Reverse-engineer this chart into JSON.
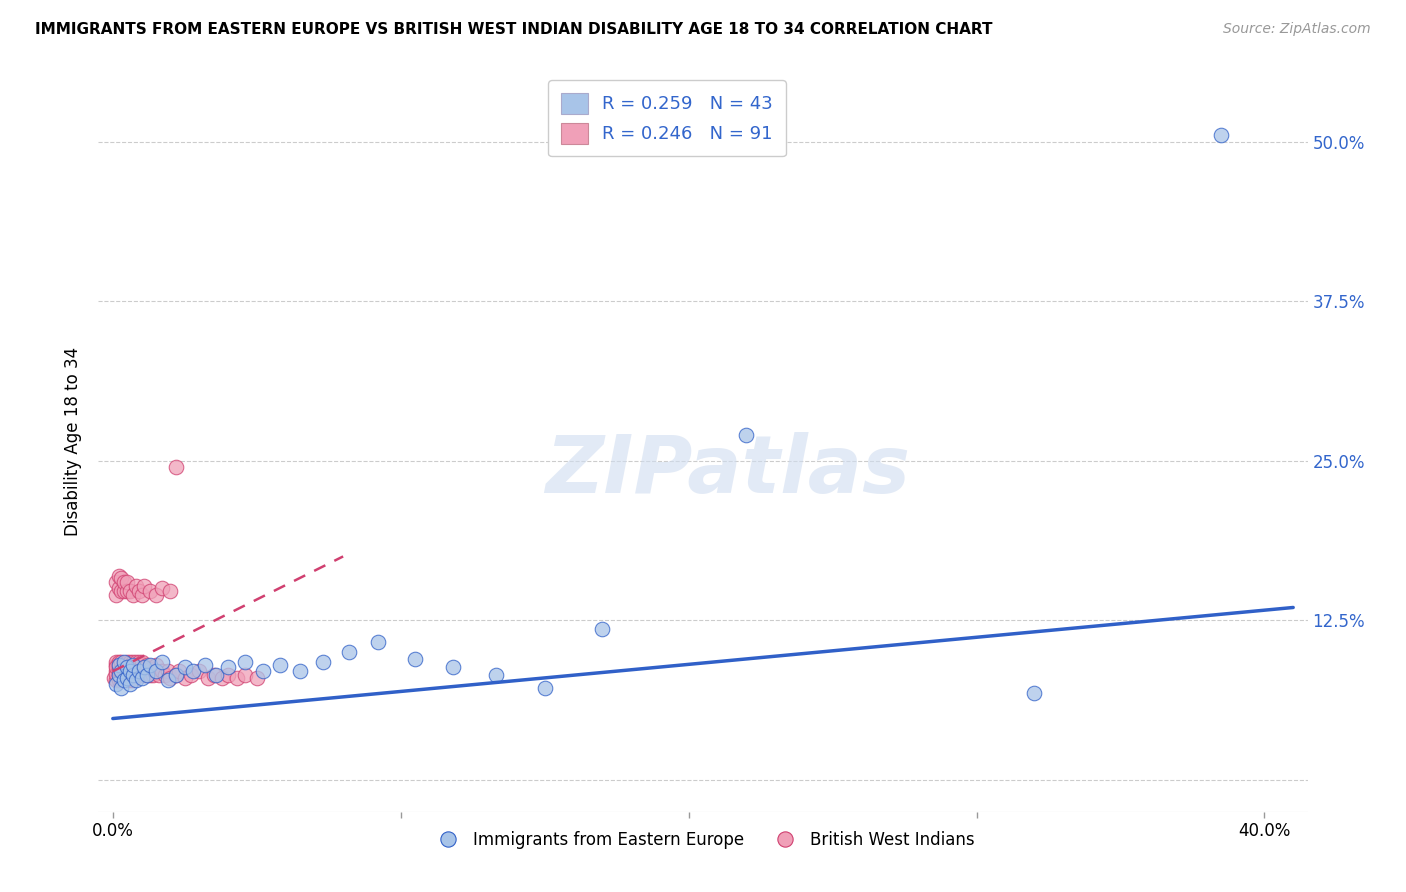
{
  "title": "IMMIGRANTS FROM EASTERN EUROPE VS BRITISH WEST INDIAN DISABILITY AGE 18 TO 34 CORRELATION CHART",
  "source": "Source: ZipAtlas.com",
  "ylabel": "Disability Age 18 to 34",
  "blue_color": "#a8c4e8",
  "pink_color": "#f0a0b8",
  "blue_line_color": "#3060c8",
  "pink_line_color": "#d04070",
  "watermark": "ZIPatlas",
  "legend1_label": "R = 0.259   N = 43",
  "legend2_label": "R = 0.246   N = 91",
  "legend_bottom1": "Immigrants from Eastern Europe",
  "legend_bottom2": "British West Indians",
  "xlim": [
    -0.005,
    0.415
  ],
  "ylim": [
    -0.025,
    0.555
  ],
  "blue_line_x0": 0.0,
  "blue_line_y0": 0.048,
  "blue_line_x1": 0.41,
  "blue_line_y1": 0.135,
  "pink_line_x0": 0.0,
  "pink_line_y0": 0.085,
  "pink_line_x1": 0.08,
  "pink_line_y1": 0.175,
  "blue_x": [
    0.001,
    0.002,
    0.002,
    0.003,
    0.003,
    0.004,
    0.004,
    0.005,
    0.005,
    0.006,
    0.006,
    0.007,
    0.007,
    0.008,
    0.009,
    0.01,
    0.011,
    0.012,
    0.013,
    0.015,
    0.017,
    0.019,
    0.022,
    0.025,
    0.028,
    0.032,
    0.036,
    0.04,
    0.046,
    0.052,
    0.058,
    0.065,
    0.073,
    0.082,
    0.092,
    0.105,
    0.118,
    0.133,
    0.15,
    0.17,
    0.22,
    0.32,
    0.385
  ],
  "blue_y": [
    0.075,
    0.082,
    0.09,
    0.072,
    0.085,
    0.078,
    0.092,
    0.08,
    0.088,
    0.075,
    0.085,
    0.082,
    0.09,
    0.078,
    0.085,
    0.08,
    0.088,
    0.082,
    0.09,
    0.085,
    0.092,
    0.078,
    0.082,
    0.088,
    0.085,
    0.09,
    0.082,
    0.088,
    0.092,
    0.085,
    0.09,
    0.085,
    0.092,
    0.1,
    0.108,
    0.095,
    0.088,
    0.082,
    0.072,
    0.118,
    0.27,
    0.068,
    0.505
  ],
  "pink_x": [
    0.0005,
    0.001,
    0.001,
    0.001,
    0.001,
    0.001,
    0.001,
    0.002,
    0.002,
    0.002,
    0.002,
    0.002,
    0.002,
    0.003,
    0.003,
    0.003,
    0.003,
    0.003,
    0.004,
    0.004,
    0.004,
    0.004,
    0.005,
    0.005,
    0.005,
    0.005,
    0.005,
    0.006,
    0.006,
    0.006,
    0.006,
    0.007,
    0.007,
    0.007,
    0.007,
    0.008,
    0.008,
    0.008,
    0.009,
    0.009,
    0.009,
    0.01,
    0.01,
    0.01,
    0.011,
    0.011,
    0.012,
    0.012,
    0.013,
    0.013,
    0.014,
    0.015,
    0.015,
    0.016,
    0.017,
    0.018,
    0.019,
    0.02,
    0.022,
    0.023,
    0.025,
    0.027,
    0.03,
    0.033,
    0.035,
    0.038,
    0.04,
    0.043,
    0.046,
    0.05,
    0.001,
    0.001,
    0.002,
    0.002,
    0.003,
    0.003,
    0.004,
    0.004,
    0.005,
    0.005,
    0.006,
    0.007,
    0.008,
    0.009,
    0.01,
    0.011,
    0.013,
    0.015,
    0.017,
    0.02,
    0.022
  ],
  "pink_y": [
    0.08,
    0.085,
    0.09,
    0.092,
    0.078,
    0.083,
    0.088,
    0.082,
    0.087,
    0.092,
    0.078,
    0.085,
    0.09,
    0.082,
    0.087,
    0.092,
    0.078,
    0.085,
    0.082,
    0.087,
    0.09,
    0.078,
    0.082,
    0.087,
    0.092,
    0.078,
    0.085,
    0.082,
    0.087,
    0.092,
    0.078,
    0.082,
    0.087,
    0.092,
    0.078,
    0.082,
    0.087,
    0.092,
    0.082,
    0.087,
    0.092,
    0.082,
    0.087,
    0.092,
    0.082,
    0.087,
    0.082,
    0.09,
    0.082,
    0.087,
    0.082,
    0.085,
    0.09,
    0.082,
    0.085,
    0.082,
    0.085,
    0.08,
    0.082,
    0.085,
    0.08,
    0.082,
    0.085,
    0.08,
    0.082,
    0.08,
    0.082,
    0.08,
    0.082,
    0.08,
    0.145,
    0.155,
    0.15,
    0.16,
    0.148,
    0.158,
    0.148,
    0.155,
    0.148,
    0.155,
    0.148,
    0.145,
    0.152,
    0.148,
    0.145,
    0.152,
    0.148,
    0.145,
    0.15,
    0.148,
    0.245
  ]
}
